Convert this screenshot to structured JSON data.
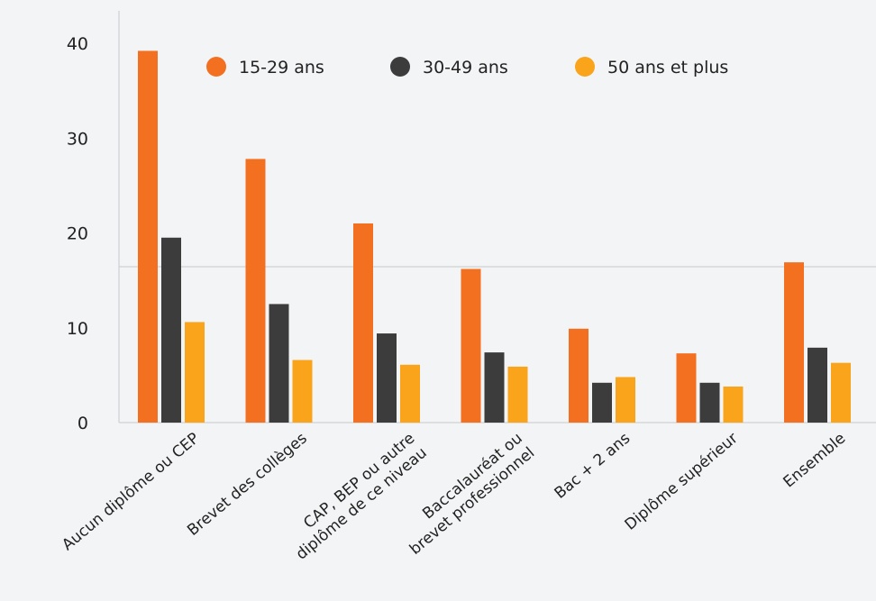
{
  "chart_data": {
    "type": "bar",
    "categories": [
      [
        "Aucun diplôme ou CEP"
      ],
      [
        "Brevet des collèges"
      ],
      [
        "CAP, BEP ou autre",
        "diplôme de ce niveau"
      ],
      [
        "Baccalauréat ou",
        "brevet professionnel"
      ],
      [
        "Bac + 2 ans"
      ],
      [
        "Diplôme supérieur"
      ],
      [
        "Ensemble"
      ]
    ],
    "series": [
      {
        "name": "15-29 ans",
        "color": "#f37021",
        "values": [
          39.2,
          27.8,
          21.0,
          16.2,
          9.9,
          7.3,
          16.9
        ]
      },
      {
        "name": "30-49 ans",
        "color": "#3c3c3c",
        "values": [
          19.5,
          12.5,
          9.4,
          7.4,
          4.2,
          4.2,
          7.9
        ]
      },
      {
        "name": "50 ans et plus",
        "color": "#f9a41a",
        "values": [
          10.6,
          6.6,
          6.1,
          5.9,
          4.8,
          3.8,
          6.3
        ]
      }
    ],
    "yticks": [
      0,
      10,
      20,
      30,
      40
    ],
    "ylim": [
      0,
      43.5
    ],
    "legend_position": "top",
    "grid": false
  }
}
